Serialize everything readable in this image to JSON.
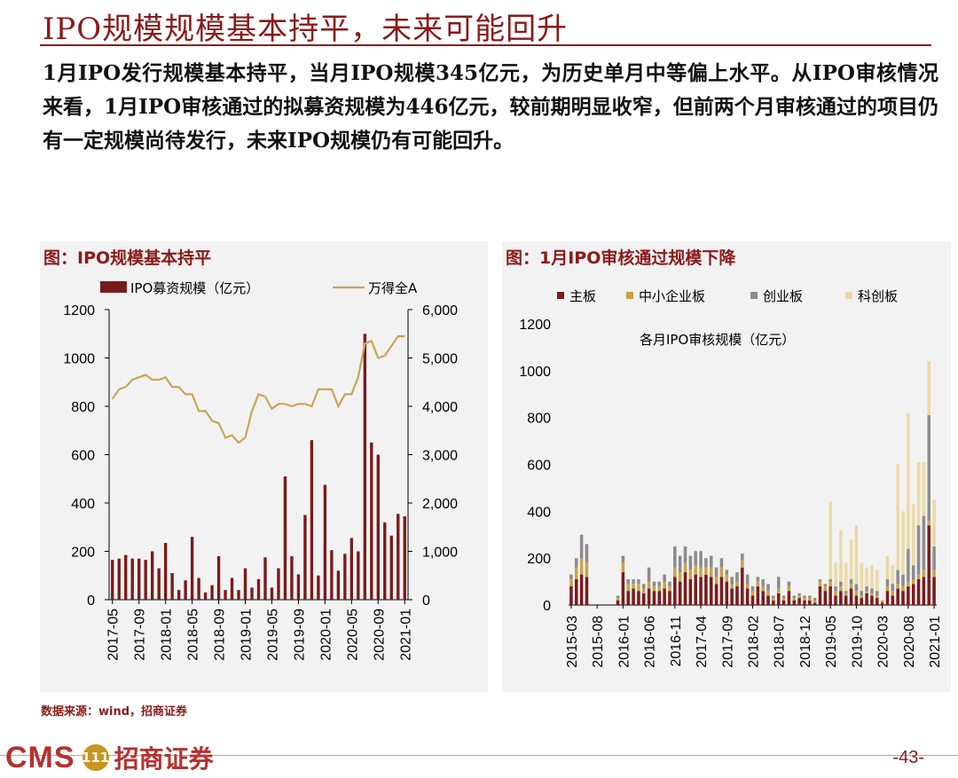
{
  "page": {
    "title": "IPO规模规模基本持平，未来可能回升",
    "body": "1月IPO发行规模基本持平，当月IPO规模345亿元，为历史单月中等偏上水平。从IPO审核情况来看，1月IPO审核通过的拟募资规模为446亿元，较前期明显收窄，但前两个月审核通过的项目仍有一定规模尚待发行，未来IPO规模仍有可能回升。",
    "source": "数据来源：wind，招商证券",
    "logo_text": "CMS",
    "logo_badge": "111",
    "logo_cn": "招商证券",
    "page_number": "-43-",
    "colors": {
      "accent": "#8b1a1a",
      "bar": "#7a1b1b",
      "line": "#c8a557"
    }
  },
  "chart_data": [
    {
      "type": "bar",
      "panel_title": "图：IPO规模基本持平",
      "x": [
        "2017-05",
        "2017-06",
        "2017-07",
        "2017-08",
        "2017-09",
        "2017-10",
        "2017-11",
        "2017-12",
        "2018-01",
        "2018-02",
        "2018-03",
        "2018-04",
        "2018-05",
        "2018-06",
        "2018-07",
        "2018-08",
        "2018-09",
        "2018-10",
        "2018-11",
        "2018-12",
        "2019-01",
        "2019-02",
        "2019-03",
        "2019-04",
        "2019-05",
        "2019-06",
        "2019-07",
        "2019-08",
        "2019-09",
        "2019-10",
        "2019-11",
        "2019-12",
        "2020-01",
        "2020-02",
        "2020-03",
        "2020-04",
        "2020-05",
        "2020-06",
        "2020-07",
        "2020-08",
        "2020-09",
        "2020-10",
        "2020-11",
        "2020-12",
        "2021-01"
      ],
      "x_tick_labels": [
        "2017-05",
        "2017-09",
        "2018-01",
        "2018-05",
        "2018-09",
        "2019-01",
        "2019-05",
        "2019-09",
        "2020-01",
        "2020-05",
        "2020-09",
        "2021-01"
      ],
      "series": [
        {
          "name": "IPO募资规模（亿元）",
          "kind": "bar",
          "axis": "left",
          "color": "#7a1b1b",
          "values": [
            165,
            170,
            185,
            170,
            170,
            165,
            200,
            130,
            235,
            110,
            40,
            80,
            260,
            90,
            30,
            60,
            180,
            40,
            90,
            40,
            130,
            50,
            85,
            175,
            50,
            130,
            510,
            180,
            105,
            350,
            660,
            100,
            475,
            205,
            120,
            190,
            255,
            200,
            1100,
            650,
            600,
            320,
            265,
            355,
            345
          ]
        },
        {
          "name": "万得全A",
          "kind": "line",
          "axis": "right",
          "color": "#c8a557",
          "values": [
            4150,
            4350,
            4400,
            4550,
            4600,
            4650,
            4550,
            4550,
            4600,
            4400,
            4400,
            4250,
            4250,
            3900,
            3900,
            3700,
            3650,
            3350,
            3400,
            3250,
            3350,
            3900,
            4250,
            4200,
            3950,
            4050,
            4050,
            4000,
            4050,
            4050,
            4000,
            4350,
            4350,
            4350,
            4000,
            4250,
            4250,
            4600,
            5300,
            5350,
            5000,
            5050,
            5250,
            5450,
            5450
          ]
        }
      ],
      "left_axis": {
        "range": [
          0,
          1200
        ],
        "ticks": [
          "0",
          "200",
          "400",
          "600",
          "800",
          "1000",
          "1200"
        ]
      },
      "right_axis": {
        "range": [
          0,
          6000
        ],
        "ticks": [
          "0",
          "1,000",
          "2,000",
          "3,000",
          "4,000",
          "5,000",
          "6,000"
        ]
      },
      "legend_position": "top"
    },
    {
      "type": "bar",
      "stacked": true,
      "panel_title": "图：1月IPO审核通过规模下降",
      "inner_title": "各月IPO审核规模（亿元）",
      "x": [
        "2015-03",
        "2015-04",
        "2015-05",
        "2015-06",
        "2015-07",
        "2015-08",
        "2015-09",
        "2015-10",
        "2015-11",
        "2015-12",
        "2016-01",
        "2016-02",
        "2016-03",
        "2016-04",
        "2016-05",
        "2016-06",
        "2016-07",
        "2016-08",
        "2016-09",
        "2016-10",
        "2016-11",
        "2016-12",
        "2017-01",
        "2017-02",
        "2017-03",
        "2017-04",
        "2017-05",
        "2017-06",
        "2017-07",
        "2017-08",
        "2017-09",
        "2017-10",
        "2017-11",
        "2017-12",
        "2018-01",
        "2018-02",
        "2018-03",
        "2018-04",
        "2018-05",
        "2018-06",
        "2018-07",
        "2018-08",
        "2018-09",
        "2018-10",
        "2018-11",
        "2018-12",
        "2019-01",
        "2019-02",
        "2019-03",
        "2019-04",
        "2019-05",
        "2019-06",
        "2019-07",
        "2019-08",
        "2019-09",
        "2019-10",
        "2019-11",
        "2019-12",
        "2020-01",
        "2020-02",
        "2020-03",
        "2020-04",
        "2020-05",
        "2020-06",
        "2020-07",
        "2020-08",
        "2020-09",
        "2020-10",
        "2020-11",
        "2020-12",
        "2021-01"
      ],
      "x_tick_labels": [
        "2015-03",
        "2015-08",
        "2016-01",
        "2016-06",
        "2016-11",
        "2017-04",
        "2017-09",
        "2018-02",
        "2018-07",
        "2018-12",
        "2019-05",
        "2019-10",
        "2020-03",
        "2020-08",
        "2021-01"
      ],
      "series": [
        {
          "name": "主板",
          "color": "#7a1b1b",
          "values": [
            80,
            110,
            130,
            120,
            0,
            0,
            0,
            0,
            0,
            20,
            140,
            60,
            70,
            60,
            50,
            70,
            60,
            60,
            70,
            60,
            120,
            100,
            140,
            110,
            130,
            120,
            130,
            120,
            90,
            120,
            100,
            70,
            80,
            160,
            70,
            40,
            80,
            60,
            40,
            20,
            50,
            20,
            60,
            20,
            30,
            20,
            20,
            10,
            80,
            60,
            80,
            40,
            60,
            40,
            70,
            40,
            30,
            50,
            40,
            30,
            10,
            60,
            40,
            70,
            60,
            80,
            90,
            110,
            120,
            340,
            120
          ]
        },
        {
          "name": "中小企业板",
          "color": "#c9a24a",
          "values": [
            30,
            50,
            70,
            60,
            0,
            0,
            0,
            0,
            0,
            10,
            40,
            30,
            20,
            30,
            20,
            30,
            20,
            20,
            30,
            20,
            40,
            40,
            40,
            40,
            40,
            40,
            30,
            40,
            30,
            40,
            30,
            20,
            20,
            30,
            20,
            20,
            20,
            20,
            20,
            10,
            20,
            10,
            20,
            10,
            10,
            10,
            10,
            10,
            20,
            20,
            20,
            20,
            20,
            10,
            20,
            20,
            10,
            10,
            10,
            10,
            10,
            20,
            20,
            20,
            20,
            20,
            20,
            20,
            30,
            20,
            30
          ]
        },
        {
          "name": "创业板",
          "color": "#8c8c8c",
          "values": [
            20,
            40,
            100,
            80,
            0,
            0,
            0,
            0,
            0,
            10,
            30,
            20,
            20,
            20,
            20,
            60,
            20,
            20,
            30,
            20,
            90,
            70,
            70,
            60,
            60,
            70,
            40,
            50,
            40,
            40,
            20,
            30,
            40,
            30,
            40,
            20,
            20,
            30,
            30,
            10,
            50,
            10,
            20,
            10,
            10,
            10,
            10,
            10,
            10,
            10,
            10,
            20,
            20,
            10,
            20,
            30,
            20,
            20,
            20,
            20,
            0,
            30,
            30,
            60,
            50,
            140,
            60,
            210,
            230,
            450,
            100
          ]
        },
        {
          "name": "科创板",
          "color": "#ecd9a5",
          "values": [
            0,
            0,
            0,
            0,
            0,
            0,
            0,
            0,
            0,
            0,
            0,
            0,
            0,
            0,
            0,
            0,
            0,
            0,
            0,
            0,
            0,
            0,
            0,
            0,
            0,
            0,
            0,
            0,
            0,
            0,
            0,
            0,
            0,
            0,
            0,
            0,
            0,
            0,
            0,
            0,
            0,
            0,
            0,
            0,
            0,
            0,
            0,
            0,
            0,
            0,
            330,
            100,
            220,
            120,
            170,
            250,
            120,
            80,
            100,
            90,
            0,
            100,
            80,
            450,
            270,
            580,
            260,
            270,
            230,
            230,
            200
          ]
        }
      ],
      "left_axis": {
        "range": [
          0,
          1200
        ],
        "ticks": [
          "0",
          "200",
          "400",
          "600",
          "800",
          "1000",
          "1200"
        ]
      },
      "legend_position": "top"
    }
  ]
}
